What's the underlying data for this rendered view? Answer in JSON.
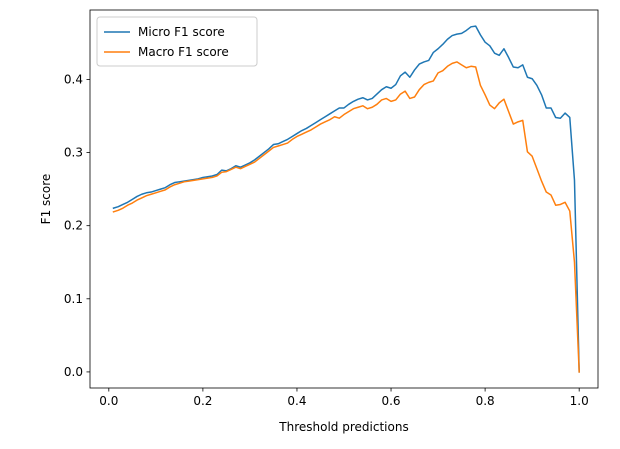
{
  "chart_data": {
    "type": "line",
    "xlabel": "Threshold predictions",
    "ylabel": "F1 score",
    "xlim": [
      -0.04,
      1.04
    ],
    "ylim": [
      -0.022,
      0.495
    ],
    "xticks": [
      0.0,
      0.2,
      0.4,
      0.6,
      0.8,
      1.0
    ],
    "xtick_labels": [
      "0.0",
      "0.2",
      "0.4",
      "0.6",
      "0.8",
      "1.0"
    ],
    "yticks": [
      0.0,
      0.1,
      0.2,
      0.3,
      0.4
    ],
    "ytick_labels": [
      "0.0",
      "0.1",
      "0.2",
      "0.3",
      "0.4"
    ],
    "grid": false,
    "legend_position": "top-left",
    "series": [
      {
        "name": "Micro F1 score",
        "color": "#1f77b4",
        "x": [
          0.01,
          0.02,
          0.03,
          0.04,
          0.05,
          0.06,
          0.07,
          0.08,
          0.09,
          0.1,
          0.11,
          0.12,
          0.13,
          0.14,
          0.15,
          0.16,
          0.17,
          0.18,
          0.19,
          0.2,
          0.21,
          0.22,
          0.23,
          0.24,
          0.25,
          0.26,
          0.27,
          0.28,
          0.29,
          0.3,
          0.31,
          0.32,
          0.33,
          0.34,
          0.35,
          0.36,
          0.37,
          0.38,
          0.39,
          0.4,
          0.41,
          0.42,
          0.43,
          0.44,
          0.45,
          0.46,
          0.47,
          0.48,
          0.49,
          0.5,
          0.51,
          0.52,
          0.53,
          0.54,
          0.55,
          0.56,
          0.57,
          0.58,
          0.59,
          0.6,
          0.61,
          0.62,
          0.63,
          0.64,
          0.65,
          0.66,
          0.67,
          0.68,
          0.69,
          0.7,
          0.71,
          0.72,
          0.73,
          0.74,
          0.75,
          0.76,
          0.77,
          0.78,
          0.79,
          0.8,
          0.81,
          0.82,
          0.83,
          0.84,
          0.85,
          0.86,
          0.87,
          0.88,
          0.89,
          0.9,
          0.91,
          0.92,
          0.93,
          0.94,
          0.95,
          0.96,
          0.97,
          0.98,
          0.99,
          1.0
        ],
        "y": [
          0.224,
          0.226,
          0.229,
          0.232,
          0.236,
          0.24,
          0.243,
          0.245,
          0.246,
          0.248,
          0.25,
          0.252,
          0.256,
          0.259,
          0.26,
          0.261,
          0.262,
          0.263,
          0.264,
          0.266,
          0.267,
          0.268,
          0.27,
          0.276,
          0.275,
          0.278,
          0.282,
          0.28,
          0.283,
          0.286,
          0.29,
          0.295,
          0.3,
          0.305,
          0.311,
          0.312,
          0.315,
          0.318,
          0.322,
          0.326,
          0.33,
          0.333,
          0.337,
          0.341,
          0.345,
          0.349,
          0.353,
          0.357,
          0.361,
          0.361,
          0.366,
          0.37,
          0.373,
          0.375,
          0.372,
          0.374,
          0.38,
          0.386,
          0.39,
          0.388,
          0.393,
          0.405,
          0.41,
          0.403,
          0.413,
          0.421,
          0.424,
          0.426,
          0.437,
          0.442,
          0.448,
          0.455,
          0.46,
          0.462,
          0.463,
          0.467,
          0.472,
          0.473,
          0.461,
          0.451,
          0.446,
          0.436,
          0.433,
          0.442,
          0.43,
          0.417,
          0.416,
          0.42,
          0.403,
          0.401,
          0.392,
          0.379,
          0.361,
          0.361,
          0.348,
          0.347,
          0.354,
          0.348,
          0.262,
          0.0
        ]
      },
      {
        "name": "Macro F1 score",
        "color": "#ff7f0e",
        "x": [
          0.01,
          0.02,
          0.03,
          0.04,
          0.05,
          0.06,
          0.07,
          0.08,
          0.09,
          0.1,
          0.11,
          0.12,
          0.13,
          0.14,
          0.15,
          0.16,
          0.17,
          0.18,
          0.19,
          0.2,
          0.21,
          0.22,
          0.23,
          0.24,
          0.25,
          0.26,
          0.27,
          0.28,
          0.29,
          0.3,
          0.31,
          0.32,
          0.33,
          0.34,
          0.35,
          0.36,
          0.37,
          0.38,
          0.39,
          0.4,
          0.41,
          0.42,
          0.43,
          0.44,
          0.45,
          0.46,
          0.47,
          0.48,
          0.49,
          0.5,
          0.51,
          0.52,
          0.53,
          0.54,
          0.55,
          0.56,
          0.57,
          0.58,
          0.59,
          0.6,
          0.61,
          0.62,
          0.63,
          0.64,
          0.65,
          0.66,
          0.67,
          0.68,
          0.69,
          0.7,
          0.71,
          0.72,
          0.73,
          0.74,
          0.75,
          0.76,
          0.77,
          0.78,
          0.79,
          0.8,
          0.81,
          0.82,
          0.83,
          0.84,
          0.85,
          0.86,
          0.87,
          0.88,
          0.89,
          0.9,
          0.91,
          0.92,
          0.93,
          0.94,
          0.95,
          0.96,
          0.97,
          0.98,
          0.99,
          1.0
        ],
        "y": [
          0.219,
          0.221,
          0.224,
          0.228,
          0.231,
          0.235,
          0.238,
          0.241,
          0.243,
          0.245,
          0.247,
          0.249,
          0.253,
          0.256,
          0.258,
          0.26,
          0.261,
          0.262,
          0.263,
          0.264,
          0.265,
          0.266,
          0.268,
          0.273,
          0.274,
          0.277,
          0.28,
          0.278,
          0.281,
          0.284,
          0.287,
          0.292,
          0.297,
          0.302,
          0.307,
          0.309,
          0.311,
          0.313,
          0.318,
          0.322,
          0.325,
          0.328,
          0.331,
          0.335,
          0.339,
          0.342,
          0.345,
          0.349,
          0.347,
          0.352,
          0.356,
          0.36,
          0.362,
          0.364,
          0.36,
          0.362,
          0.366,
          0.372,
          0.374,
          0.37,
          0.372,
          0.38,
          0.384,
          0.374,
          0.376,
          0.386,
          0.393,
          0.396,
          0.398,
          0.409,
          0.412,
          0.418,
          0.422,
          0.424,
          0.42,
          0.416,
          0.418,
          0.417,
          0.392,
          0.379,
          0.365,
          0.36,
          0.368,
          0.373,
          0.356,
          0.339,
          0.342,
          0.344,
          0.301,
          0.295,
          0.278,
          0.261,
          0.246,
          0.242,
          0.228,
          0.229,
          0.232,
          0.22,
          0.15,
          0.0
        ]
      }
    ]
  }
}
